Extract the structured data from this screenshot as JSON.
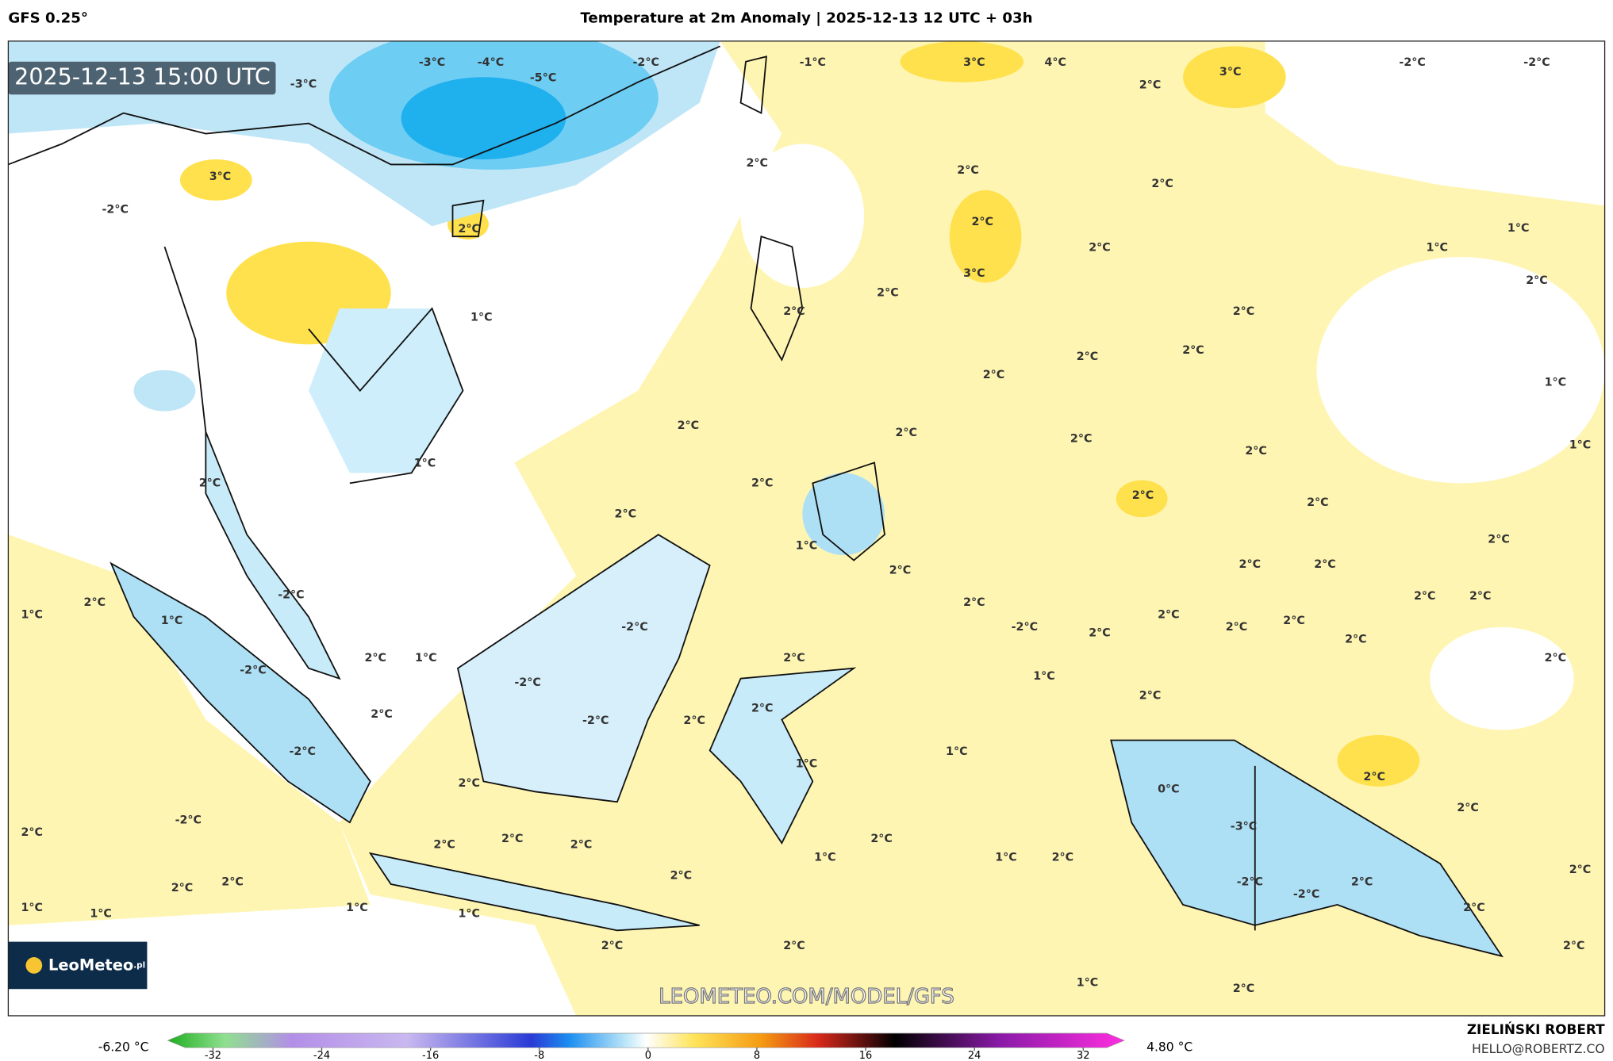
{
  "header": {
    "model": "GFS 0.25°",
    "title": "Temperature at 2m Anomaly | 2025-12-13 12 UTC + 03h"
  },
  "map": {
    "timestamp": "2025-12-13 15:00 UTC",
    "watermark": "LEOMETEO.COM/MODEL/GFS",
    "logo": "LeoMeteo",
    "logo_suffix": ".pl",
    "labels": [
      "-1°C",
      "3°C",
      "4°C",
      "2°C",
      "3°C",
      "-2°C",
      "-2°C",
      "-3°C",
      "-4°C",
      "-5°C",
      "-2°C",
      "-3°C",
      "-2°C",
      "3°C",
      "2°C",
      "2°C",
      "2°C",
      "2°C",
      "2°C",
      "3°C",
      "2°C",
      "2°C",
      "1°C",
      "1°C",
      "2°C",
      "2°C",
      "2°C",
      "2°C",
      "2°C",
      "2°C",
      "1°C",
      "1°C",
      "2°C",
      "2°C",
      "2°C",
      "2°C",
      "1°C",
      "1°C",
      "2°C",
      "2°C",
      "2°C",
      "2°C",
      "2°C",
      "1°C",
      "2°C",
      "2°C",
      "2°C",
      "2°C",
      "-2°C",
      "2°C",
      "1°C",
      "1°C",
      "2°C",
      "2°C",
      "2°C",
      "-2°C",
      "-2°C",
      "2°C",
      "2°C",
      "2°C",
      "2°C",
      "2°C",
      "2°C",
      "1°C",
      "2°C",
      "2°C",
      "-2°C",
      "-2°C",
      "1°C",
      "2°C",
      "2°C",
      "2°C",
      "-2°C",
      "2°C",
      "-2°C",
      "1°C",
      "1°C",
      "2°C",
      "0°C",
      "2°C",
      "-2°C",
      "2°C",
      "2°C",
      "2°C",
      "2°C",
      "1°C",
      "2°C",
      "1°C",
      "2°C",
      "-3°C",
      "2°C",
      "2°C",
      "2°C",
      "2°C",
      "-2°C",
      "-2°C",
      "2°C",
      "2°C",
      "1°C",
      "1°C",
      "1°C",
      "1°C",
      "2°C",
      "2°C",
      "2°C",
      "2°C",
      "1°C",
      "2°C"
    ]
  },
  "colorbar": {
    "min_label": "-6.20 °C",
    "max_label": "4.80 °C",
    "ticks": [
      -32,
      -24,
      -16,
      -8,
      0,
      8,
      16,
      24,
      32
    ]
  },
  "footer": {
    "author": "ZIELIŃSKI ROBERT",
    "contact": "HELLO@ROBERTZ.CO"
  }
}
